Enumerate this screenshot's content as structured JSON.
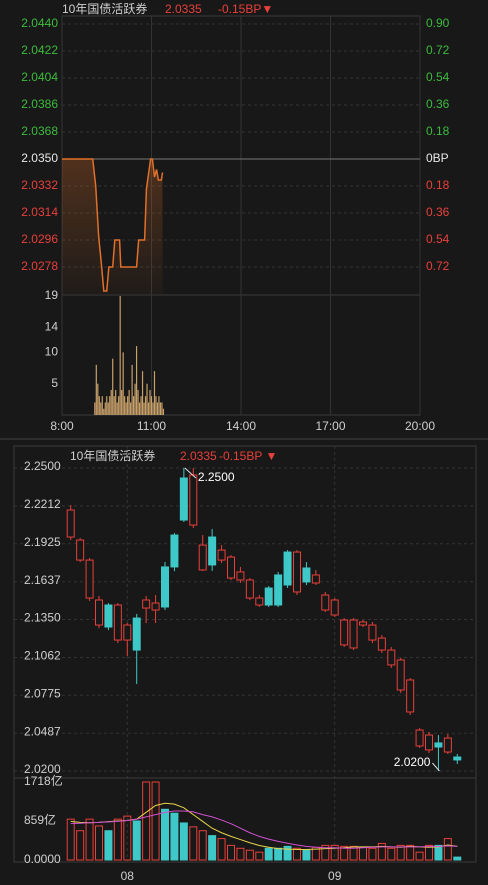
{
  "chart_data": [
    {
      "type": "line",
      "title": "10年国债活跃券",
      "price": "2.0335",
      "change": "-0.15BP▼",
      "color": "#e0702a",
      "x": [
        8.0,
        9.03,
        9.13,
        9.23,
        9.33,
        9.4,
        9.5,
        9.57,
        9.7,
        9.77,
        9.93,
        9.97,
        10.5,
        10.57,
        10.77,
        10.83,
        10.97,
        11.03,
        11.1,
        11.17,
        11.23,
        11.33,
        11.37
      ],
      "values": [
        2.035,
        2.035,
        2.0332,
        2.0298,
        2.0278,
        2.0262,
        2.0262,
        2.0278,
        2.0278,
        2.0296,
        2.0296,
        2.0278,
        2.0278,
        2.0296,
        2.0296,
        2.033,
        2.035,
        2.035,
        2.0338,
        2.0343,
        2.0336,
        2.0336,
        2.0341
      ],
      "xlim": [
        8,
        20
      ],
      "xticks": [
        {
          "value": 8,
          "label": "8:00"
        },
        {
          "value": 11,
          "label": "11:00"
        },
        {
          "value": 14,
          "label": "14:00"
        },
        {
          "value": 17,
          "label": "17:00"
        },
        {
          "value": 20,
          "label": "20:00"
        }
      ],
      "ylim": [
        2.026,
        2.044
      ],
      "yticks": [
        {
          "value": 2.044,
          "label": "2.0440"
        },
        2.0422,
        2.0404,
        2.0386,
        2.0368,
        {
          "value": 2.035,
          "label": "2.0350"
        },
        2.0332,
        2.0314,
        2.0296,
        2.0278
      ],
      "y2lim": [
        -0.9,
        0.9
      ],
      "y2ticks": [
        {
          "value": 0.9,
          "label": "0.90"
        },
        0.72,
        0.54,
        0.36,
        0.18,
        {
          "value": 0,
          "label": "0BP"
        },
        {
          "value": -0.18,
          "label": "0.18"
        },
        {
          "value": -0.36,
          "label": "0.36"
        },
        {
          "value": -0.54,
          "label": "0.54"
        },
        {
          "value": -0.72,
          "label": "0.72"
        }
      ],
      "grid": true
    },
    {
      "type": "bar",
      "color": "#c8a06a",
      "x": [
        9.1,
        9.15,
        9.2,
        9.25,
        9.3,
        9.35,
        9.4,
        9.45,
        9.5,
        9.55,
        9.6,
        9.65,
        9.7,
        9.75,
        9.8,
        9.85,
        9.9,
        9.95,
        10.0,
        10.05,
        10.1,
        10.15,
        10.2,
        10.25,
        10.3,
        10.35,
        10.4,
        10.45,
        10.5,
        10.55,
        10.6,
        10.65,
        10.7,
        10.75,
        10.8,
        10.85,
        10.9,
        10.95,
        11.0,
        11.05,
        11.1,
        11.15,
        11.2,
        11.25,
        11.3,
        11.35,
        11.4
      ],
      "values": [
        2,
        8,
        5,
        3,
        2,
        3,
        1,
        2,
        3,
        2,
        3,
        4,
        9,
        3,
        4,
        2,
        3,
        19,
        4,
        10,
        3,
        2,
        3,
        4,
        2,
        8,
        3,
        5,
        11,
        4,
        2,
        3,
        7,
        2,
        3,
        5,
        2,
        4,
        3,
        2,
        7,
        3,
        2,
        3,
        2,
        2,
        1
      ],
      "xlim": [
        8,
        20
      ],
      "ylim": [
        0,
        19
      ],
      "yticks": [
        19,
        14,
        10,
        5
      ]
    },
    {
      "type": "candlestick",
      "title": "10年国债活跃券",
      "price": "2.0335",
      "change": "-0.15BP ▼",
      "up_color": "#e8403a",
      "down_color": "#3fc8c8",
      "categories": [
        null,
        null,
        null,
        null,
        null,
        null,
        "08",
        null,
        null,
        null,
        null,
        null,
        null,
        null,
        null,
        null,
        null,
        null,
        null,
        null,
        null,
        null,
        null,
        null,
        null,
        null,
        null,
        null,
        "09",
        null,
        null,
        null,
        null,
        null,
        null,
        null,
        null,
        null,
        null,
        null,
        null,
        null
      ],
      "open": [
        2.1976,
        2.1801,
        2.1513,
        2.1308,
        2.146,
        2.1194,
        2.1194,
        2.1361,
        2.1437,
        2.1422,
        2.1749,
        2.1991,
        2.2424,
        2.2067,
        2.1726,
        2.1976,
        2.1801,
        2.1665,
        2.165,
        2.1513,
        2.146,
        2.1589,
        2.1688,
        2.1862,
        2.1559,
        2.1741,
        2.1627,
        2.1422,
        2.1384,
        2.1157,
        2.1134,
        2.1308,
        2.1194,
        2.1118,
        2.1005,
        2.0815,
        2.0648,
        2.039,
        2.036,
        2.0413,
        2.0344,
        2.0306
      ],
      "high": [
        2.2219,
        2.1968,
        2.1817,
        2.1528,
        2.1475,
        2.1475,
        2.1323,
        2.1392,
        2.1528,
        2.1536,
        2.1786,
        2.2006,
        2.25,
        2.25,
        2.1991,
        2.2037,
        2.1915,
        2.1839,
        2.1749,
        2.1665,
        2.1536,
        2.1604,
        2.1711,
        2.1877,
        2.1877,
        2.1786,
        2.1726,
        2.1559,
        2.1513,
        2.1361,
        2.1361,
        2.1346,
        2.1331,
        2.1232,
        2.1141,
        2.1058,
        2.0906,
        2.0526,
        2.0496,
        2.0473,
        2.0481,
        2.0329
      ],
      "low": [
        2.1953,
        2.1786,
        2.149,
        2.1285,
        2.127,
        2.1171,
        2.1073,
        2.086,
        2.1323,
        2.1323,
        2.1422,
        2.1717,
        2.209,
        2.2044,
        2.1718,
        2.1719,
        2.1779,
        2.165,
        2.1627,
        2.1498,
        2.1445,
        2.1445,
        2.1445,
        2.1589,
        2.1536,
        2.1612,
        2.1612,
        2.1407,
        2.1369,
        2.1141,
        2.1118,
        2.1293,
        2.1171,
        2.1096,
        2.0982,
        2.0792,
        2.0625,
        2.0375,
        2.0337,
        2.02,
        2.0329,
        2.0253
      ],
      "close": [
        2.2181,
        2.1953,
        2.1801,
        2.1498,
        2.1293,
        2.146,
        2.1308,
        2.1118,
        2.1498,
        2.1475,
        2.1445,
        2.1749,
        2.2105,
        2.2447,
        2.1915,
        2.1764,
        2.1877,
        2.1824,
        2.1711,
        2.165,
        2.1513,
        2.146,
        2.146,
        2.1612,
        2.1862,
        2.1635,
        2.1688,
        2.1536,
        2.1498,
        2.1346,
        2.1346,
        2.1331,
        2.1308,
        2.1209,
        2.1118,
        2.1043,
        2.0891,
        2.0511,
        2.0473,
        2.0382,
        2.045,
        2.0284
      ],
      "ylim": [
        2.02,
        2.25
      ],
      "yticks": [
        {
          "value": 2.25,
          "label": "2.2500"
        },
        2.2212,
        2.1925,
        2.1637,
        {
          "value": 2.135,
          "label": "2.1350"
        },
        2.1062,
        2.0775,
        2.0487,
        {
          "value": 2.02,
          "label": "2.0200"
        }
      ],
      "annotations": [
        {
          "text": "2.2500",
          "value": 2.25
        },
        {
          "text": "2.0200",
          "value": 2.02
        }
      ],
      "grid": true
    },
    {
      "type": "bar",
      "values": [
        900,
        645,
        900,
        750,
        645,
        900,
        966,
        859,
        1718,
        1718,
        1117,
        1030,
        816,
        730,
        645,
        537,
        472,
        322,
        258,
        215,
        172,
        258,
        258,
        300,
        258,
        215,
        280,
        322,
        322,
        300,
        300,
        280,
        258,
        365,
        258,
        322,
        322,
        172,
        322,
        322,
        472,
        64
      ],
      "ylim": [
        0,
        1718
      ],
      "yticks": [
        {
          "value": 1718,
          "label": "1718亿"
        },
        {
          "value": 859,
          "label": "859亿"
        },
        {
          "value": 0,
          "label": "0.0000"
        }
      ],
      "lines": [
        {
          "color": "#e8d44a",
          "values": [
            850,
            830,
            820,
            830,
            845,
            860,
            870,
            900,
            1050,
            1200,
            1250,
            1230,
            1150,
            1000,
            850,
            700,
            600,
            520,
            450,
            380,
            320,
            280,
            250,
            240,
            230,
            230,
            240,
            250,
            260,
            270,
            290,
            290,
            290,
            300,
            290,
            280,
            300,
            290,
            280,
            290,
            330,
            300
          ]
        },
        {
          "color": "#d050d0",
          "values": [
            800,
            810,
            820,
            830,
            840,
            850,
            870,
            900,
            950,
            1000,
            1050,
            1080,
            1080,
            1060,
            1000,
            950,
            880,
            800,
            700,
            600,
            520,
            460,
            410,
            370,
            330,
            300,
            280,
            270,
            270,
            260,
            260,
            270,
            280,
            290,
            290,
            290,
            290,
            290,
            300,
            300,
            310,
            300
          ]
        }
      ]
    }
  ]
}
